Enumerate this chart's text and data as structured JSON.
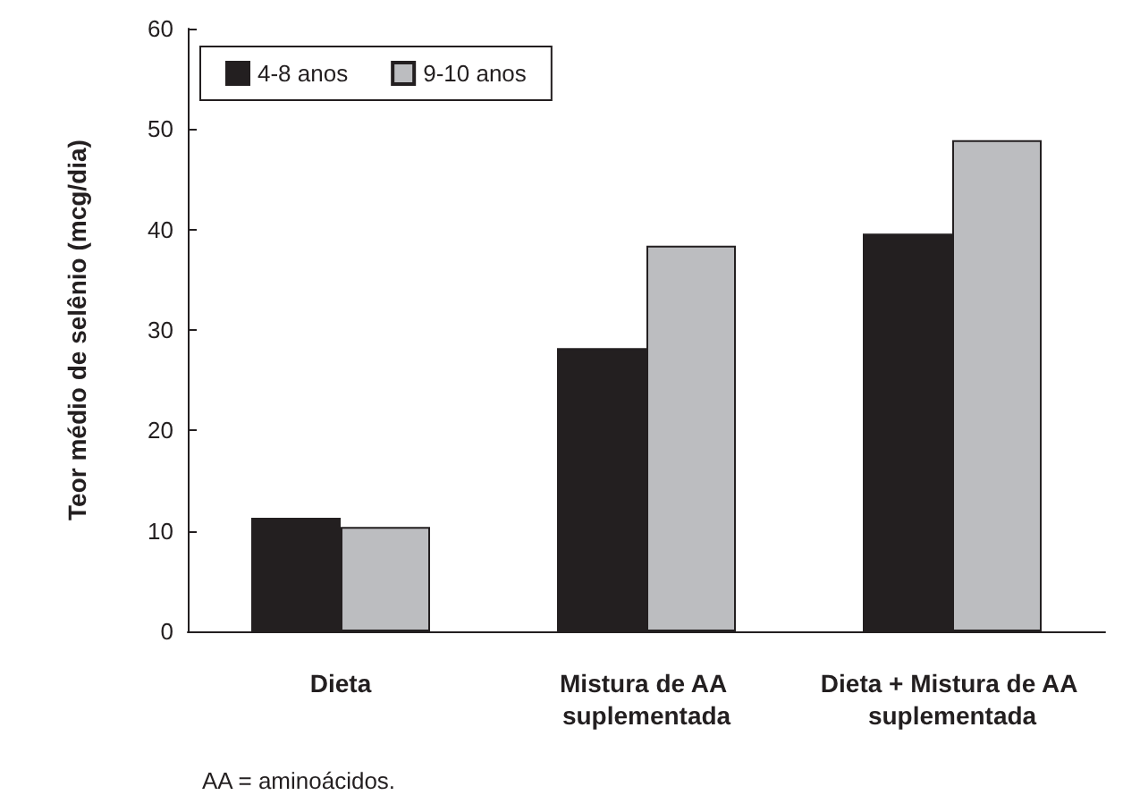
{
  "chart_data": {
    "type": "bar",
    "ylabel": "Teor médio de selênio (mcg/dia)",
    "categories": [
      "Dieta",
      "Mistura de AA suplementada",
      "Dieta + Mistura de AA suplementada"
    ],
    "series": [
      {
        "name": "4-8 anos",
        "color": "#231f20",
        "values": [
          11.3,
          28.2,
          39.6
        ]
      },
      {
        "name": "9-10 anos",
        "color": "#bcbdc0",
        "values": [
          10.4,
          38.4,
          48.9
        ]
      }
    ],
    "ylim": [
      0,
      60
    ],
    "yticks": [
      0,
      10,
      20,
      30,
      40,
      50,
      60
    ],
    "grid": false,
    "legend": "top left",
    "annotations": [
      "AA = aminoácidos."
    ]
  }
}
